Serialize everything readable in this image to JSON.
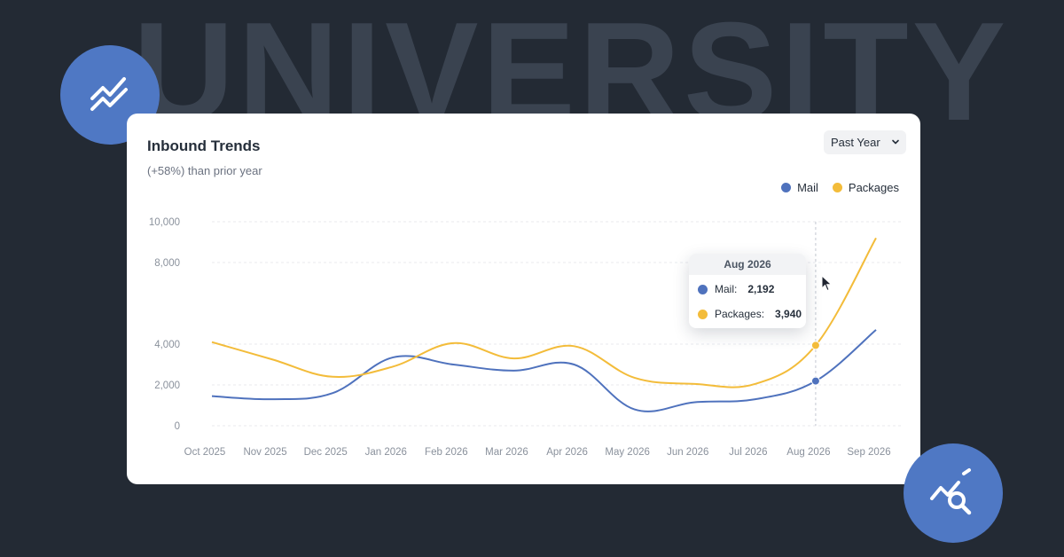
{
  "watermark": "UNIVERSITY",
  "card": {
    "title": "Inbound Trends",
    "subtitle": "(+58%) than prior year",
    "period_select": "Past Year"
  },
  "colors": {
    "background": "#232a34",
    "mail": "#4f72bd",
    "packages": "#f3bc3a",
    "badge": "#4f78c4"
  },
  "icons": {
    "top_badge": "trending-lines-icon",
    "bottom_badge": "chart-search-icon",
    "select": "chevron-down-icon",
    "pointer": "mouse-pointer-icon"
  },
  "chart_data": {
    "type": "line",
    "categories": [
      "Oct 2025",
      "Nov 2025",
      "Dec 2025",
      "Jan 2026",
      "Feb 2026",
      "Mar 2026",
      "Apr 2026",
      "May 2026",
      "Jun 2026",
      "Jul 2026",
      "Aug 2026",
      "Sep 2026"
    ],
    "ytick_labels": [
      "0",
      "2,000",
      "4,000",
      "8,000",
      "10,000"
    ],
    "ylim": [
      0,
      10000
    ],
    "grid": true,
    "legend_position": "top-right",
    "series": [
      {
        "name": "Mail",
        "color": "#4f72bd",
        "values": [
          1450,
          1300,
          1600,
          3350,
          3000,
          2700,
          3000,
          800,
          1150,
          1300,
          2192,
          4700
        ]
      },
      {
        "name": "Packages",
        "color": "#f3bc3a",
        "values": [
          4100,
          3250,
          2400,
          2900,
          4050,
          3300,
          3900,
          2350,
          2050,
          2050,
          3940,
          9200
        ]
      }
    ],
    "highlight": {
      "category": "Aug 2026",
      "rows": [
        {
          "label": "Mail:",
          "value": "2,192",
          "color": "#4f72bd"
        },
        {
          "label": "Packages:",
          "value": "3,940",
          "color": "#f3bc3a"
        }
      ]
    }
  }
}
